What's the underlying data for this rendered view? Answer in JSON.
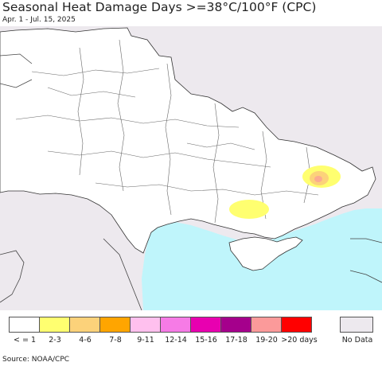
{
  "title": "Seasonal Heat Damage Days >=38°C/100°F (CPC)",
  "subtitle": "Apr. 1 - Jul. 15, 2025",
  "source": "Source: NOAA/CPC",
  "colors": {
    "land": "#ffffff",
    "outside": "#ede9ee",
    "sea": "#bff5fb",
    "border": "#444444"
  },
  "legend": [
    {
      "label": "< = 1",
      "color": "#ffffff"
    },
    {
      "label": "2-3",
      "color": "#ffff70"
    },
    {
      "label": "4-6",
      "color": "#fcd27a"
    },
    {
      "label": "7-8",
      "color": "#ffa500"
    },
    {
      "label": "9-11",
      "color": "#ffc0ee"
    },
    {
      "label": "12-14",
      "color": "#f67be6"
    },
    {
      "label": "15-16",
      "color": "#e800b0"
    },
    {
      "label": "17-18",
      "color": "#a5008c"
    },
    {
      "label": "19-20",
      "color": "#fb9a9a"
    },
    {
      "label": ">20 days",
      "color": "#ff0000"
    }
  ],
  "no_data": {
    "label": "No Data",
    "color": "#ede9ee"
  }
}
